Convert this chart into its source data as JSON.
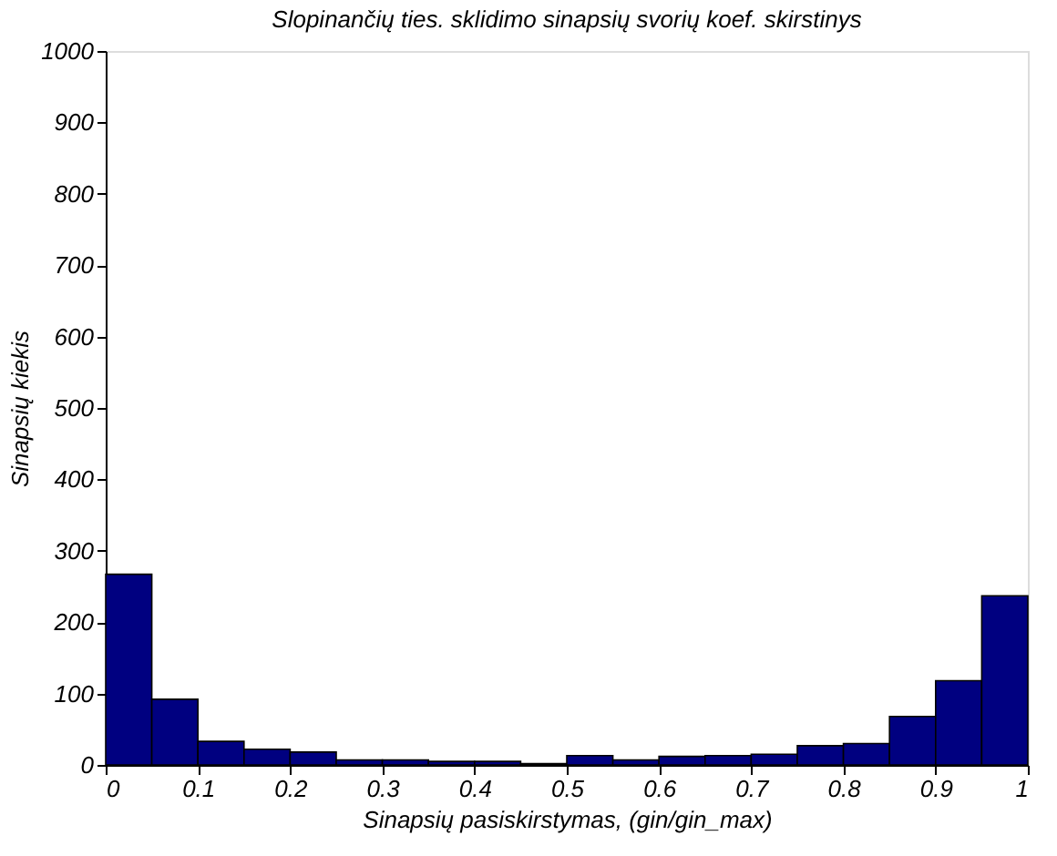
{
  "chart_data": {
    "type": "histogram",
    "title": "Slopinančių ties. sklidimo sinapsių svorių koef. skirstinys",
    "xlabel": "Sinapsių pasiskirstymas, (gin/gin_max)",
    "ylabel": "Sinapsių kiekis",
    "bins": [
      0,
      0.05,
      0.1,
      0.15,
      0.2,
      0.25,
      0.3,
      0.35,
      0.4,
      0.45,
      0.5,
      0.55,
      0.6,
      0.65,
      0.7,
      0.75,
      0.8,
      0.85,
      0.9,
      0.95,
      1
    ],
    "values": [
      267,
      92,
      33,
      22,
      18,
      7,
      7,
      5,
      5,
      2,
      13,
      7,
      12,
      13,
      15,
      27,
      30,
      68,
      118,
      237
    ],
    "color": "#000080",
    "xlim": [
      0,
      1
    ],
    "xticks": [
      0,
      0.1,
      0.2,
      0.3,
      0.4,
      0.5,
      0.6,
      0.7,
      0.8,
      0.9,
      1
    ],
    "ylim": [
      0,
      1000
    ],
    "yticks": [
      0,
      100,
      200,
      300,
      400,
      500,
      600,
      700,
      800,
      900,
      1000
    ],
    "grid": false
  }
}
